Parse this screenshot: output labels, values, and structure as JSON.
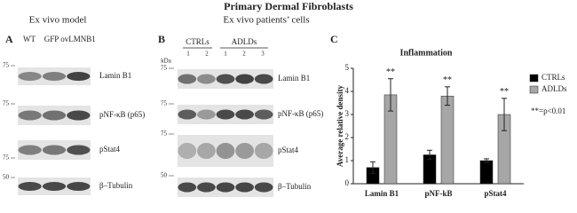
{
  "header": {
    "title": "Primary Dermal Fibroblasts"
  },
  "panel_a": {
    "label": "A",
    "title": "Ex vivo model",
    "lanes": [
      "WT",
      "GFP",
      "ovLMNB1"
    ],
    "markers": [
      "75",
      "75",
      "75",
      "50"
    ],
    "blots": [
      "Lamin B1",
      "pNF-κB (p65)",
      "pStat4",
      "β–Tubulin"
    ]
  },
  "panel_b": {
    "label": "B",
    "title": "Ex vivo patients’ cells",
    "unit": "kDa",
    "groups": [
      {
        "name": "CTRLs",
        "lanes": [
          "1",
          "2"
        ]
      },
      {
        "name": "ADLDs",
        "lanes": [
          "1",
          "2",
          "3"
        ]
      }
    ],
    "markers": [
      "75",
      "75",
      "75",
      "50"
    ],
    "blots": [
      "Lamin B1",
      "pNF-κB (p65)",
      "pStat4",
      "β–Tubulin"
    ]
  },
  "panel_c": {
    "label": "C"
  },
  "chart_data": {
    "type": "bar",
    "title": "Inflammation",
    "y_label": "Average relative density",
    "categories": [
      "Lamin B1",
      "pNF-kB",
      "pStat4"
    ],
    "series": [
      {
        "name": "CTRLs",
        "color": "#000000",
        "values": [
          0.7,
          1.25,
          1.0
        ],
        "errors": [
          0.25,
          0.2,
          0.08
        ]
      },
      {
        "name": "ADLDs",
        "color": "#a6a6a6",
        "values": [
          3.85,
          3.8,
          3.0
        ],
        "errors": [
          0.7,
          0.4,
          0.7
        ]
      }
    ],
    "annotations": [
      "**",
      "**",
      "**"
    ],
    "note": "**=p<0.01",
    "ylim": [
      0,
      5
    ],
    "yticks": [
      0,
      1,
      2,
      3,
      4,
      5
    ]
  }
}
